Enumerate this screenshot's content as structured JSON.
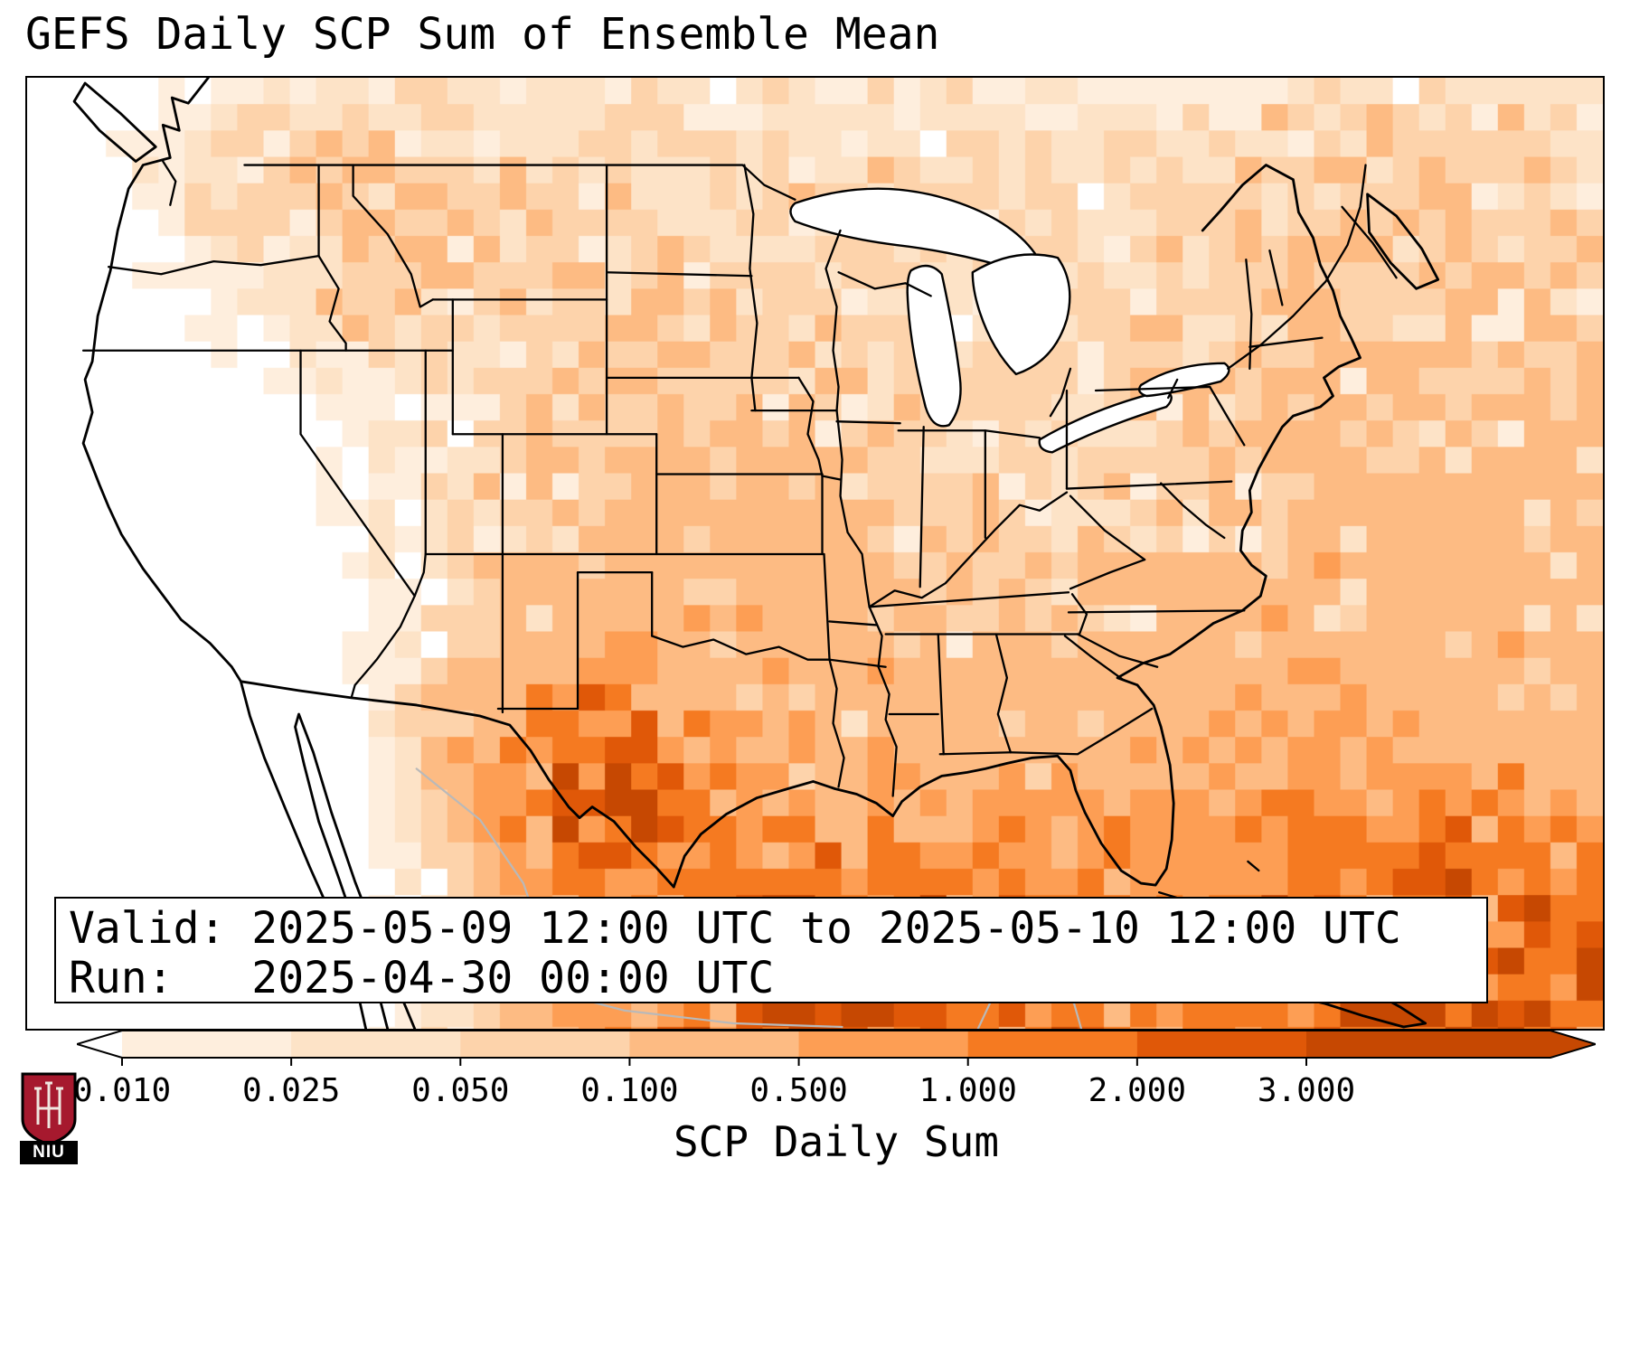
{
  "title": "GEFS Daily SCP Sum of Ensemble Mean",
  "info_box": {
    "valid_line": "Valid: 2025-05-09 12:00 UTC to 2025-05-10 12:00 UTC",
    "run_line": "Run:   2025-04-30 00:00 UTC"
  },
  "colorbar": {
    "label": "SCP Daily Sum",
    "ticks": [
      "0.010",
      "0.025",
      "0.050",
      "0.100",
      "0.500",
      "1.000",
      "2.000",
      "3.000"
    ],
    "under_color": "#ffffff",
    "bin_colors": [
      "#feeedd",
      "#fde3c7",
      "#fdd3ab",
      "#fdbb83",
      "#fd9e54",
      "#f57a21",
      "#e05808"
    ],
    "over_color": "#c64802"
  },
  "logo": {
    "text": "NIU",
    "shield_color": "#a6192e"
  }
}
